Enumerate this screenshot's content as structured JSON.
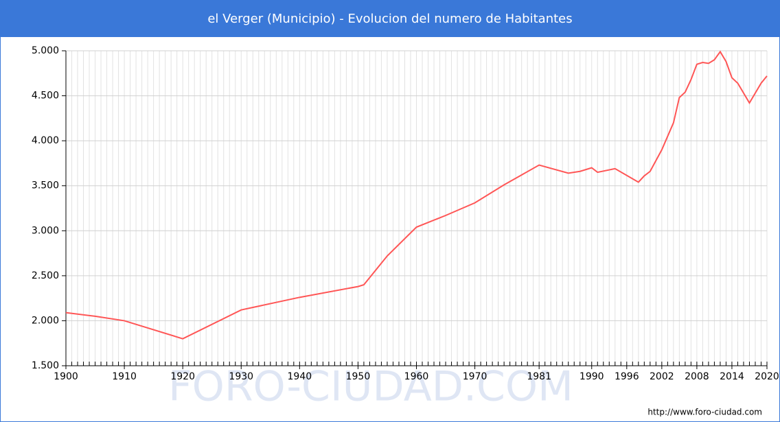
{
  "chart_data": {
    "type": "line",
    "title": "el Verger (Municipio) - Evolucion del numero de Habitantes",
    "watermark": "FORO-CIUDAD.COM",
    "source": "http://www.foro-ciudad.com",
    "x": [
      1900,
      1905,
      1910,
      1920,
      1930,
      1940,
      1950,
      1951,
      1955,
      1960,
      1965,
      1970,
      1975,
      1981,
      1986,
      1988,
      1990,
      1991,
      1994,
      1998,
      1999,
      2000,
      2002,
      2004,
      2005,
      2006,
      2007,
      2008,
      2009,
      2010,
      2011,
      2012,
      2013,
      2014,
      2015,
      2017,
      2019,
      2020
    ],
    "series": [
      {
        "name": "Habitantes",
        "color": "#ff5555",
        "values": [
          2090,
          2050,
          2000,
          1800,
          2120,
          2260,
          2380,
          2400,
          2720,
          3040,
          3170,
          3310,
          3510,
          3730,
          3640,
          3660,
          3700,
          3650,
          3690,
          3540,
          3610,
          3660,
          3900,
          4200,
          4480,
          4540,
          4680,
          4850,
          4870,
          4860,
          4900,
          4990,
          4880,
          4700,
          4640,
          4420,
          4640,
          4720
        ]
      }
    ],
    "xlim": [
      1900,
      2020
    ],
    "xticks": [
      1900,
      1910,
      1920,
      1930,
      1940,
      1950,
      1960,
      1970,
      1981,
      1990,
      1996,
      2002,
      2008,
      2014,
      2020
    ],
    "ylim": [
      1500,
      5000
    ],
    "yticks": [
      {
        "value": 1500,
        "label": "1.500"
      },
      {
        "value": 2000,
        "label": "2.000"
      },
      {
        "value": 2500,
        "label": "2.500"
      },
      {
        "value": 3000,
        "label": "3.000"
      },
      {
        "value": 3500,
        "label": "3.500"
      },
      {
        "value": 4000,
        "label": "4.000"
      },
      {
        "value": 4500,
        "label": "4.500"
      },
      {
        "value": 5000,
        "label": "5.000"
      }
    ],
    "grid": true
  }
}
